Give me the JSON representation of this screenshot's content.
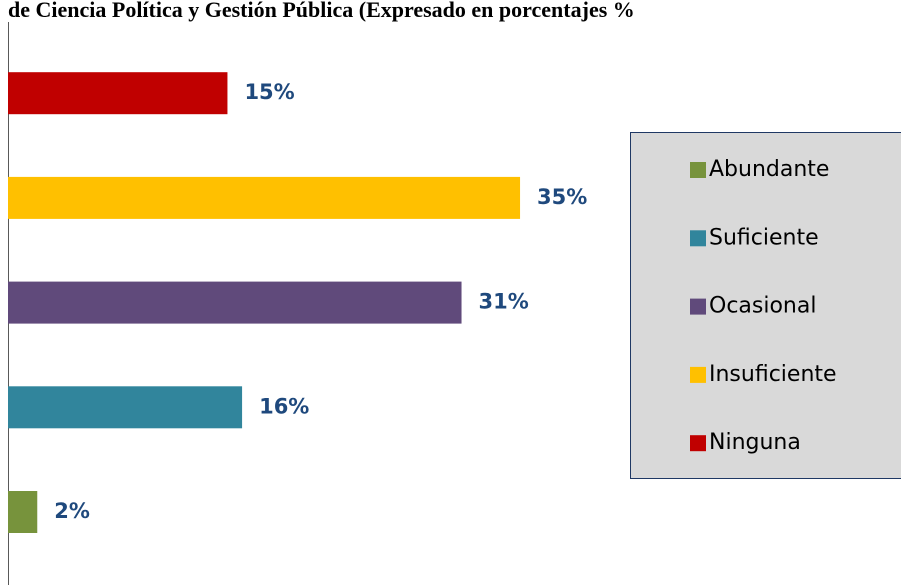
{
  "chart_data": {
    "type": "bar",
    "orientation": "horizontal",
    "title": "de Ciencia Política y Gestión Pública (Expresado en porcentajes %",
    "categories": [
      "Abundante",
      "Suficiente",
      "Ocasional",
      "Insuficiente",
      "Ninguna"
    ],
    "values": [
      2,
      16,
      31,
      35,
      15
    ],
    "value_labels": [
      "2%",
      "16%",
      "31%",
      "35%",
      "15%"
    ],
    "colors": [
      "#77933c",
      "#31859c",
      "#604a7b",
      "#ffc000",
      "#c00000"
    ],
    "legend": "right"
  }
}
